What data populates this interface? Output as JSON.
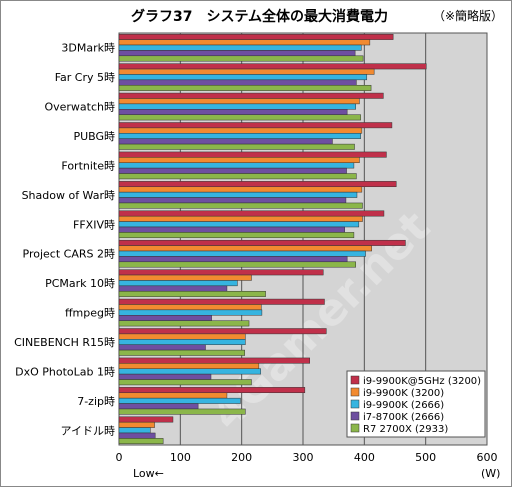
{
  "header": {
    "title": "グラフ37　システム全体の最大消費電力",
    "note": "（※簡略版）"
  },
  "axis": {
    "left_caption": "Low←",
    "unit": "(W)"
  },
  "watermark": "4Gamer.net",
  "chart_data": {
    "type": "bar",
    "orientation": "horizontal",
    "title": "グラフ37　システム全体の最大消費電力",
    "xlabel": "(W)",
    "xlim": [
      0,
      600
    ],
    "xticks": [
      0,
      100,
      200,
      300,
      400,
      500,
      600
    ],
    "grid": true,
    "legend_position": "bottom-right",
    "categories": [
      "3DMark時",
      "Far Cry 5時",
      "Overwatch時",
      "PUBG時",
      "Fortnite時",
      "Shadow of War時",
      "FFXIV時",
      "Project CARS 2時",
      "PCMark 10時",
      "ffmpeg時",
      "CINEBENCH R15時",
      "DxO PhotoLab 1時",
      "7-zip時",
      "アイドル時"
    ],
    "series": [
      {
        "name": "i9-9900K@5GHz (3200)",
        "color": "#c0304a",
        "values": [
          447,
          501,
          431,
          445,
          436,
          452,
          432,
          467,
          333,
          335,
          338,
          311,
          303,
          88
        ]
      },
      {
        "name": "i9-9900K (3200)",
        "color": "#f28a30",
        "values": [
          409,
          416,
          392,
          396,
          392,
          396,
          397,
          412,
          216,
          232,
          206,
          228,
          176,
          58
        ]
      },
      {
        "name": "i9-9900K (2666)",
        "color": "#36b4e0",
        "values": [
          395,
          404,
          386,
          394,
          383,
          388,
          391,
          402,
          193,
          233,
          206,
          231,
          198,
          51
        ]
      },
      {
        "name": "i7-8700K (2666)",
        "color": "#6e4fa0",
        "values": [
          385,
          387,
          372,
          348,
          371,
          370,
          368,
          372,
          176,
          151,
          141,
          150,
          129,
          59
        ]
      },
      {
        "name": "R7 2700X (2933)",
        "color": "#8bb64a",
        "values": [
          398,
          411,
          394,
          384,
          387,
          397,
          383,
          386,
          239,
          212,
          205,
          216,
          206,
          72
        ]
      }
    ]
  }
}
